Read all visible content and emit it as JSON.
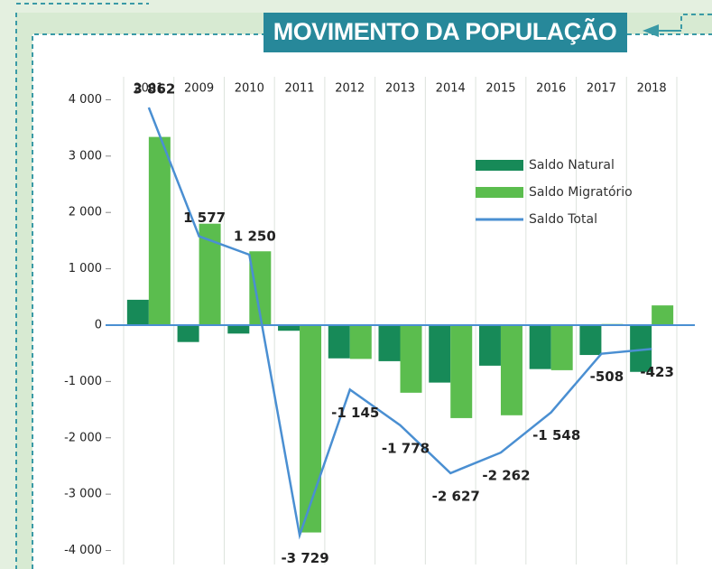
{
  "chart_data": {
    "type": "bar",
    "title": "MOVIMENTO DA POPULAÇÃO",
    "categories": [
      "2001",
      "2009",
      "2010",
      "2011",
      "2012",
      "2013",
      "2014",
      "2015",
      "2016",
      "2017",
      "2018"
    ],
    "series": [
      {
        "name": "Saldo Natural",
        "color": "#178a58",
        "values": [
          450,
          -300,
          -150,
          -100,
          -590,
          -640,
          -1020,
          -720,
          -780,
          -530,
          -830
        ]
      },
      {
        "name": "Saldo Migratório",
        "color": "#5bbd4e",
        "values": [
          3340,
          1800,
          1310,
          -3680,
          -600,
          -1200,
          -1650,
          -1600,
          -800,
          20,
          350
        ]
      },
      {
        "name": "Saldo Total",
        "color": "#4a8fd2",
        "type": "line",
        "values": [
          3862,
          1577,
          1250,
          -3729,
          -1145,
          -1778,
          -2627,
          -2262,
          -1548,
          -508,
          -423
        ],
        "value_labels": [
          "3 862",
          "1 577",
          "1 250",
          "-3 729",
          "-1 145",
          "-1 778",
          "-2 627",
          "-2 262",
          "-1 548",
          "-508",
          "-423"
        ]
      }
    ],
    "ylim": [
      -4200,
      4600
    ],
    "yticks": [
      {
        "value": 4000,
        "label": "4 000"
      },
      {
        "value": 3000,
        "label": "3 000"
      },
      {
        "value": 2000,
        "label": "2 000"
      },
      {
        "value": 1000,
        "label": "1 000"
      },
      0,
      {
        "value": -1000,
        "label": "-1 000"
      },
      {
        "value": -2000,
        "label": "-2 000"
      },
      {
        "value": -3000,
        "label": "-3 000"
      },
      {
        "value": -4000,
        "label": "-4 000"
      }
    ],
    "legend": "top right",
    "grid": false
  }
}
